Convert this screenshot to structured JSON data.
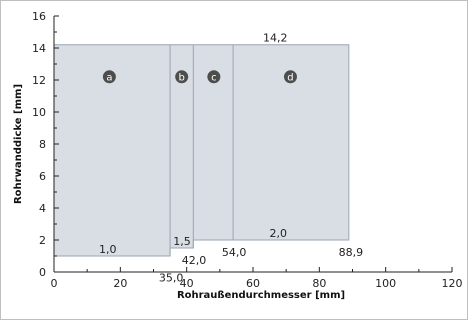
{
  "chart_data": {
    "type": "area",
    "xlabel": "Rohraußendurchmesser [mm]",
    "ylabel": "Rohrwanddicke [mm]",
    "xlim": [
      0,
      120
    ],
    "ylim": [
      0,
      16
    ],
    "x_ticks": [
      0,
      20,
      40,
      60,
      80,
      100,
      120
    ],
    "y_ticks": [
      0,
      2,
      4,
      6,
      8,
      10,
      12,
      14,
      16
    ],
    "grid": false,
    "fill_color": "#d8dee4",
    "line_color": "#9aa6b0",
    "label_circle_color": "#4d4d4d",
    "regions": [
      {
        "label": "a",
        "x_min": 0.0,
        "x_max": 35.0,
        "wall_min": 1.0,
        "wall_max": 14.2
      },
      {
        "label": "b",
        "x_min": 35.0,
        "x_max": 42.0,
        "wall_min": 1.5,
        "wall_max": 14.2
      },
      {
        "label": "c",
        "x_min": 42.0,
        "x_max": 54.0,
        "wall_min": 2.0,
        "wall_max": 14.2
      },
      {
        "label": "d",
        "x_min": 54.0,
        "x_max": 88.9,
        "wall_min": 2.0,
        "wall_max": 14.2
      }
    ],
    "annotations": [
      "1,0",
      "1,5",
      "2,0",
      "14,2",
      "35,0",
      "42,0",
      "54,0",
      "88,9"
    ]
  }
}
